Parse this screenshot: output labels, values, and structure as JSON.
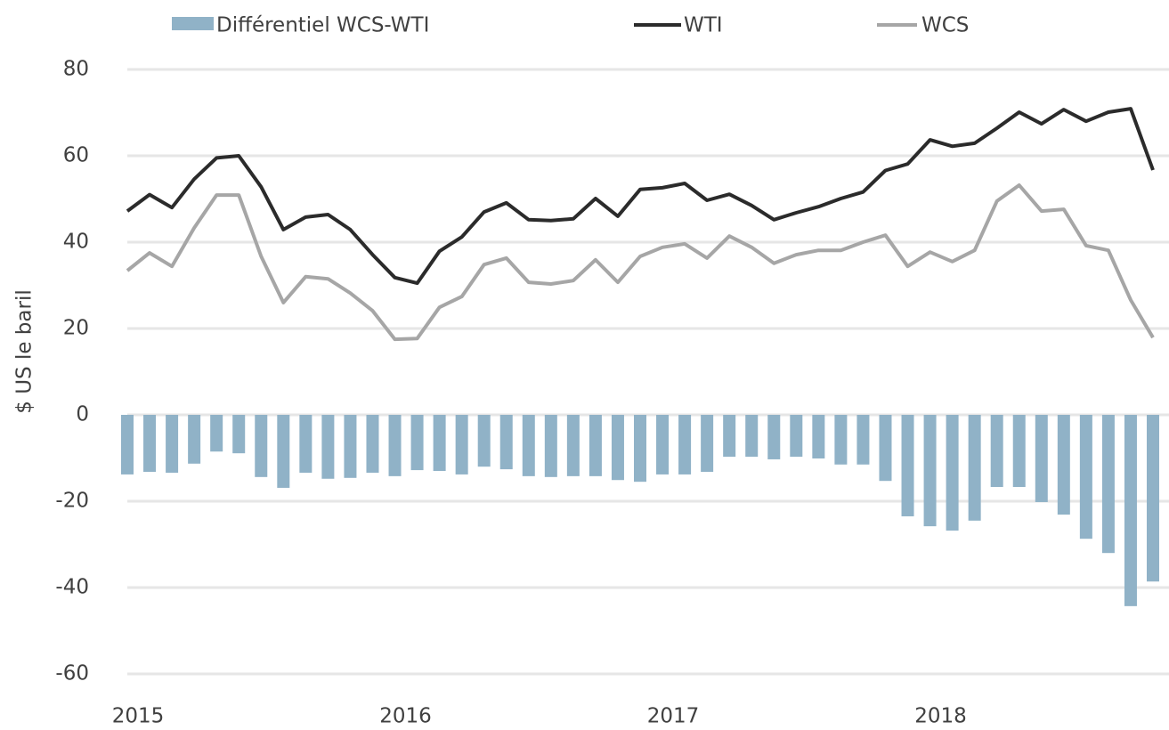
{
  "chart_data": {
    "type": "bar_line",
    "y_axis_label": "$ US le baril",
    "categories": [
      "2015",
      null,
      null,
      null,
      null,
      null,
      null,
      null,
      null,
      null,
      null,
      null,
      "2016",
      null,
      null,
      null,
      null,
      null,
      null,
      null,
      null,
      null,
      null,
      null,
      "2017",
      null,
      null,
      null,
      null,
      null,
      null,
      null,
      null,
      null,
      null,
      null,
      "2018",
      null,
      null,
      null,
      null,
      null,
      null,
      null,
      null,
      null,
      null
    ],
    "ylim": [
      -60,
      80
    ],
    "yticks": [
      -60,
      -40,
      -20,
      0,
      20,
      40,
      60,
      80
    ],
    "grid": true,
    "series": [
      {
        "name": "Différentiel WCS-WTI",
        "type": "bar",
        "color": "#90b2c7",
        "values": [
          -13.8,
          -13.2,
          -13.4,
          -11.3,
          -8.5,
          -8.9,
          -14.4,
          -16.9,
          -13.4,
          -14.8,
          -14.6,
          -13.4,
          -14.2,
          -12.8,
          -13,
          -13.8,
          -12,
          -12.6,
          -14.2,
          -14.4,
          -14.2,
          -14.2,
          -15.1,
          -15.5,
          -13.8,
          -13.8,
          -13.2,
          -9.7,
          -9.7,
          -10.3,
          -9.7,
          -10.1,
          -11.5,
          -11.5,
          -15.3,
          -23.5,
          -25.8,
          -26.8,
          -24.5,
          -16.7,
          -16.7,
          -20.2,
          -23.1,
          -28.7,
          -32,
          -44.3,
          -38.6
        ]
      },
      {
        "name": "WTI",
        "type": "line",
        "color": "#2b2b2b",
        "values": [
          47.2,
          51,
          48,
          54.6,
          59.5,
          60,
          52.8,
          42.9,
          45.8,
          46.4,
          42.9,
          37.1,
          31.8,
          30.5,
          37.9,
          41.2,
          47,
          49.1,
          45.2,
          45,
          45.4,
          50.1,
          46,
          52.2,
          52.6,
          53.6,
          49.7,
          51.1,
          48.5,
          45.2,
          46.8,
          48.2,
          50.1,
          51.6,
          56.6,
          58.1,
          63.7,
          62.2,
          62.9,
          66.4,
          70.1,
          67.4,
          70.7,
          68,
          70.1,
          70.9,
          56.7
        ]
      },
      {
        "name": "WCS",
        "type": "line",
        "color": "#a6a6a6",
        "values": [
          33.4,
          37.5,
          34.4,
          43.3,
          50.9,
          50.9,
          36.7,
          26,
          32,
          31.5,
          28.2,
          24.1,
          17.5,
          17.7,
          24.9,
          27.4,
          34.8,
          36.3,
          30.7,
          30.3,
          31.1,
          35.9,
          30.7,
          36.7,
          38.8,
          39.6,
          36.3,
          41.4,
          38.8,
          35.1,
          37.1,
          38.1,
          38.1,
          40,
          41.6,
          34.4,
          37.7,
          35.5,
          38.1,
          49.5,
          53.2,
          47.2,
          47.6,
          39.2,
          38.1,
          26.6,
          17.9
        ]
      }
    ]
  }
}
